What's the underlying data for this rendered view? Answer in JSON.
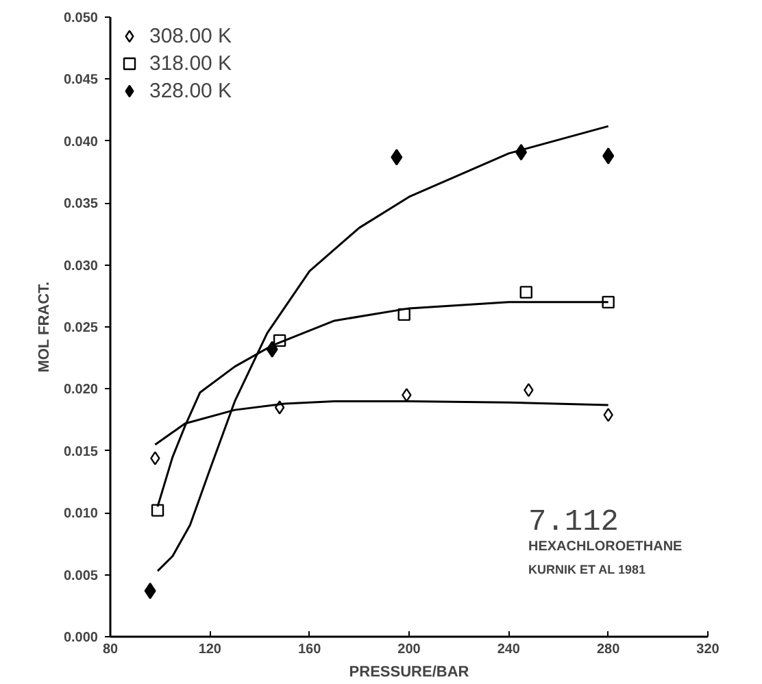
{
  "chart_data": {
    "type": "scatter",
    "xlabel": "PRESSURE/BAR",
    "ylabel": "MOL FRACT.",
    "annotations": [
      "7.112",
      "HEXACHLOROETHANE",
      "KURNIK ET AL 1981"
    ],
    "xlim": [
      80,
      320
    ],
    "xticks": [
      80,
      120,
      160,
      200,
      240,
      280,
      320
    ],
    "ylim": [
      0,
      0.05
    ],
    "yticks": [
      {
        "value": 0,
        "label": "0.000"
      },
      {
        "value": 0.005,
        "label": "0.005"
      },
      {
        "value": 0.01,
        "label": "0.010"
      },
      {
        "value": 0.015,
        "label": "0.015"
      },
      {
        "value": 0.02,
        "label": "0.020"
      },
      {
        "value": 0.025,
        "label": "0.025"
      },
      {
        "value": 0.03,
        "label": "0.030"
      },
      {
        "value": 0.035,
        "label": "0.035"
      },
      {
        "value": 0.04,
        "label": "0.040"
      },
      {
        "value": 0.045,
        "label": "0.045"
      },
      {
        "value": 0.05,
        "label": "0.050"
      }
    ],
    "grid": false,
    "legend": "top left",
    "series": [
      {
        "name": "308.00 K",
        "marker": "diamond",
        "color": "#000000",
        "x": [
          98,
          148,
          199,
          248,
          280
        ],
        "values": [
          0.0144,
          0.0185,
          0.0195,
          0.0199,
          0.0179
        ]
      },
      {
        "name": "318.00 K",
        "marker": "square",
        "color": "#000000",
        "x": [
          99,
          148,
          198,
          247,
          280
        ],
        "values": [
          0.0102,
          0.0239,
          0.026,
          0.0278,
          0.027
        ]
      },
      {
        "name": "328.00 K",
        "marker": "diamond",
        "color": "#000000",
        "x": [
          96,
          145,
          195,
          245,
          280
        ],
        "values": [
          0.0037,
          0.0232,
          0.0387,
          0.0391,
          0.0388
        ]
      },
      {
        "type": "line",
        "color": "#000000",
        "x": [
          98,
          110,
          130,
          150,
          170,
          200,
          240,
          280
        ],
        "values": [
          0.0155,
          0.0172,
          0.0183,
          0.0188,
          0.019,
          0.019,
          0.0189,
          0.0187
        ]
      },
      {
        "type": "line",
        "color": "#000000",
        "x": [
          99,
          105,
          110,
          116,
          130,
          145,
          170,
          200,
          240,
          280
        ],
        "values": [
          0.0105,
          0.0145,
          0.017,
          0.0197,
          0.0218,
          0.0235,
          0.0255,
          0.0265,
          0.027,
          0.027
        ]
      },
      {
        "type": "line",
        "color": "#000000",
        "x": [
          99,
          105,
          112,
          120,
          130,
          143,
          160,
          180,
          200,
          240,
          280
        ],
        "values": [
          0.0053,
          0.0065,
          0.009,
          0.0135,
          0.019,
          0.0245,
          0.0295,
          0.033,
          0.0355,
          0.039,
          0.0412
        ]
      }
    ]
  }
}
